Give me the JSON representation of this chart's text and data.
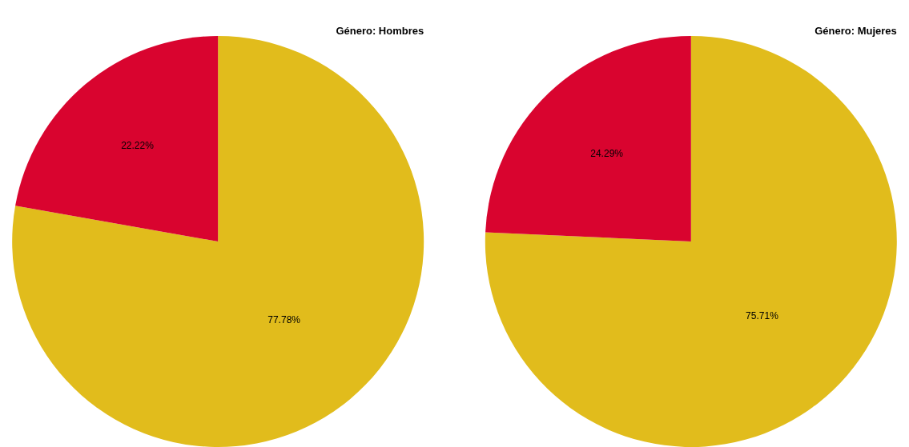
{
  "chart_data": [
    {
      "type": "pie",
      "title": "Género: Hombres",
      "categories": [
        null,
        null
      ],
      "values": [
        77.78,
        22.22
      ],
      "colors": [
        "#e1bc1c",
        "#d9042f"
      ],
      "value_labels": [
        "77.78%",
        "22.22%"
      ]
    },
    {
      "type": "pie",
      "title": "Género: Mujeres",
      "categories": [
        null,
        null
      ],
      "values": [
        75.71,
        24.29
      ],
      "colors": [
        "#e1bc1c",
        "#d9042f"
      ],
      "value_labels": [
        "75.71%",
        "24.29%"
      ]
    }
  ]
}
